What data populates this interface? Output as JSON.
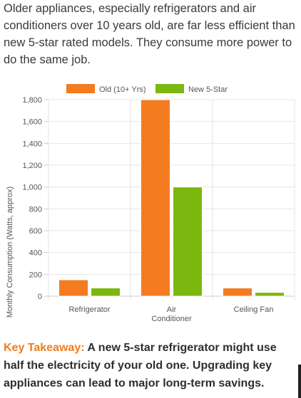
{
  "intro_text": "Older appliances, especially refrigerators and air conditioners over 10 years old, are far less efficient than new 5-star rated models. They consume more power to do the same job.",
  "chart_data": {
    "type": "bar",
    "categories": [
      [
        "Refrigerator"
      ],
      [
        "Air",
        "Conditioner"
      ],
      [
        "Ceiling Fan"
      ]
    ],
    "series": [
      {
        "name": "Old (10+ Yrs)",
        "color": "#f47b20",
        "values": [
          150,
          1800,
          75
        ]
      },
      {
        "name": "New 5-Star",
        "color": "#7cb70f",
        "values": [
          75,
          1000,
          35
        ]
      }
    ],
    "ylabel": "Monthly Consumption (Watts, approx)",
    "xlabel": "",
    "ylim": [
      0,
      1800
    ],
    "yticks": [
      "0",
      "200",
      "400",
      "600",
      "800",
      "1,000",
      "1,200",
      "1,400",
      "1,600",
      "1,800"
    ],
    "grid": true,
    "legend_position": "top"
  },
  "takeaway": {
    "lead": "Key Takeaway:",
    "text": " A new 5-star refrigerator might use half the electricity of your old one. Upgrading key appliances can lead to major long-term savings."
  }
}
